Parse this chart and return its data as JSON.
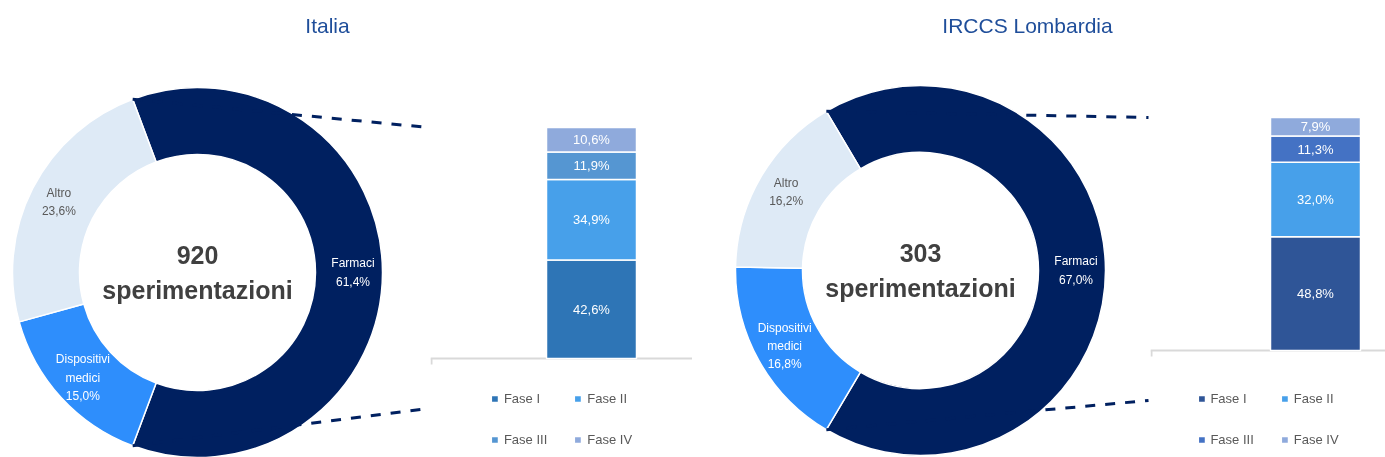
{
  "chart_data": [
    {
      "type": "donut",
      "title": "Italia",
      "categories": [
        "Farmaci",
        "Dispositivi medici",
        "Altro"
      ],
      "values": [
        61.4,
        15.0,
        23.6
      ],
      "colors": [
        "#002060",
        "#2e8efc",
        "#deeaf6"
      ],
      "value_labels": [
        "61,4%",
        "15,0%",
        "23,6%"
      ],
      "annotations": [
        "920\nsperimentazioni"
      ]
    },
    {
      "type": "bar",
      "stacked": true,
      "categories": [
        null
      ],
      "legend": "bottom",
      "series": [
        {
          "name": "Fase I",
          "color": "#2e75b6",
          "values": [
            42.6
          ],
          "value_labels": [
            "42,6%"
          ]
        },
        {
          "name": "Fase II",
          "color": "#47a0ea",
          "values": [
            34.9
          ],
          "value_labels": [
            "34,9%"
          ]
        },
        {
          "name": "Fase III",
          "color": "#5596d2",
          "values": [
            11.9
          ],
          "value_labels": [
            "11,9%"
          ]
        },
        {
          "name": "Fase IV",
          "color": "#8faadc",
          "values": [
            10.6
          ],
          "value_labels": [
            "10,6%"
          ]
        }
      ]
    },
    {
      "type": "donut",
      "title": "IRCCS Lombardia",
      "categories": [
        "Farmaci",
        "Dispositivi medici",
        "Altro"
      ],
      "values": [
        67.0,
        16.8,
        16.2
      ],
      "colors": [
        "#002060",
        "#2e8efc",
        "#deeaf6"
      ],
      "value_labels": [
        "67,0%",
        "16,8%",
        "16,2%"
      ],
      "annotations": [
        "303\nsperimentazioni"
      ]
    },
    {
      "type": "bar",
      "stacked": true,
      "categories": [
        null
      ],
      "legend": "bottom",
      "series": [
        {
          "name": "Fase I",
          "color": "#2f5597",
          "values": [
            48.8
          ],
          "value_labels": [
            "48,8%"
          ]
        },
        {
          "name": "Fase II",
          "color": "#47a0ea",
          "values": [
            32.0
          ],
          "value_labels": [
            "32,0%"
          ]
        },
        {
          "name": "Fase III",
          "color": "#4472c4",
          "values": [
            11.3
          ],
          "value_labels": [
            "11,3%"
          ]
        },
        {
          "name": "Fase IV",
          "color": "#8faadc",
          "values": [
            7.9
          ],
          "value_labels": [
            "7,9%"
          ]
        }
      ]
    }
  ]
}
